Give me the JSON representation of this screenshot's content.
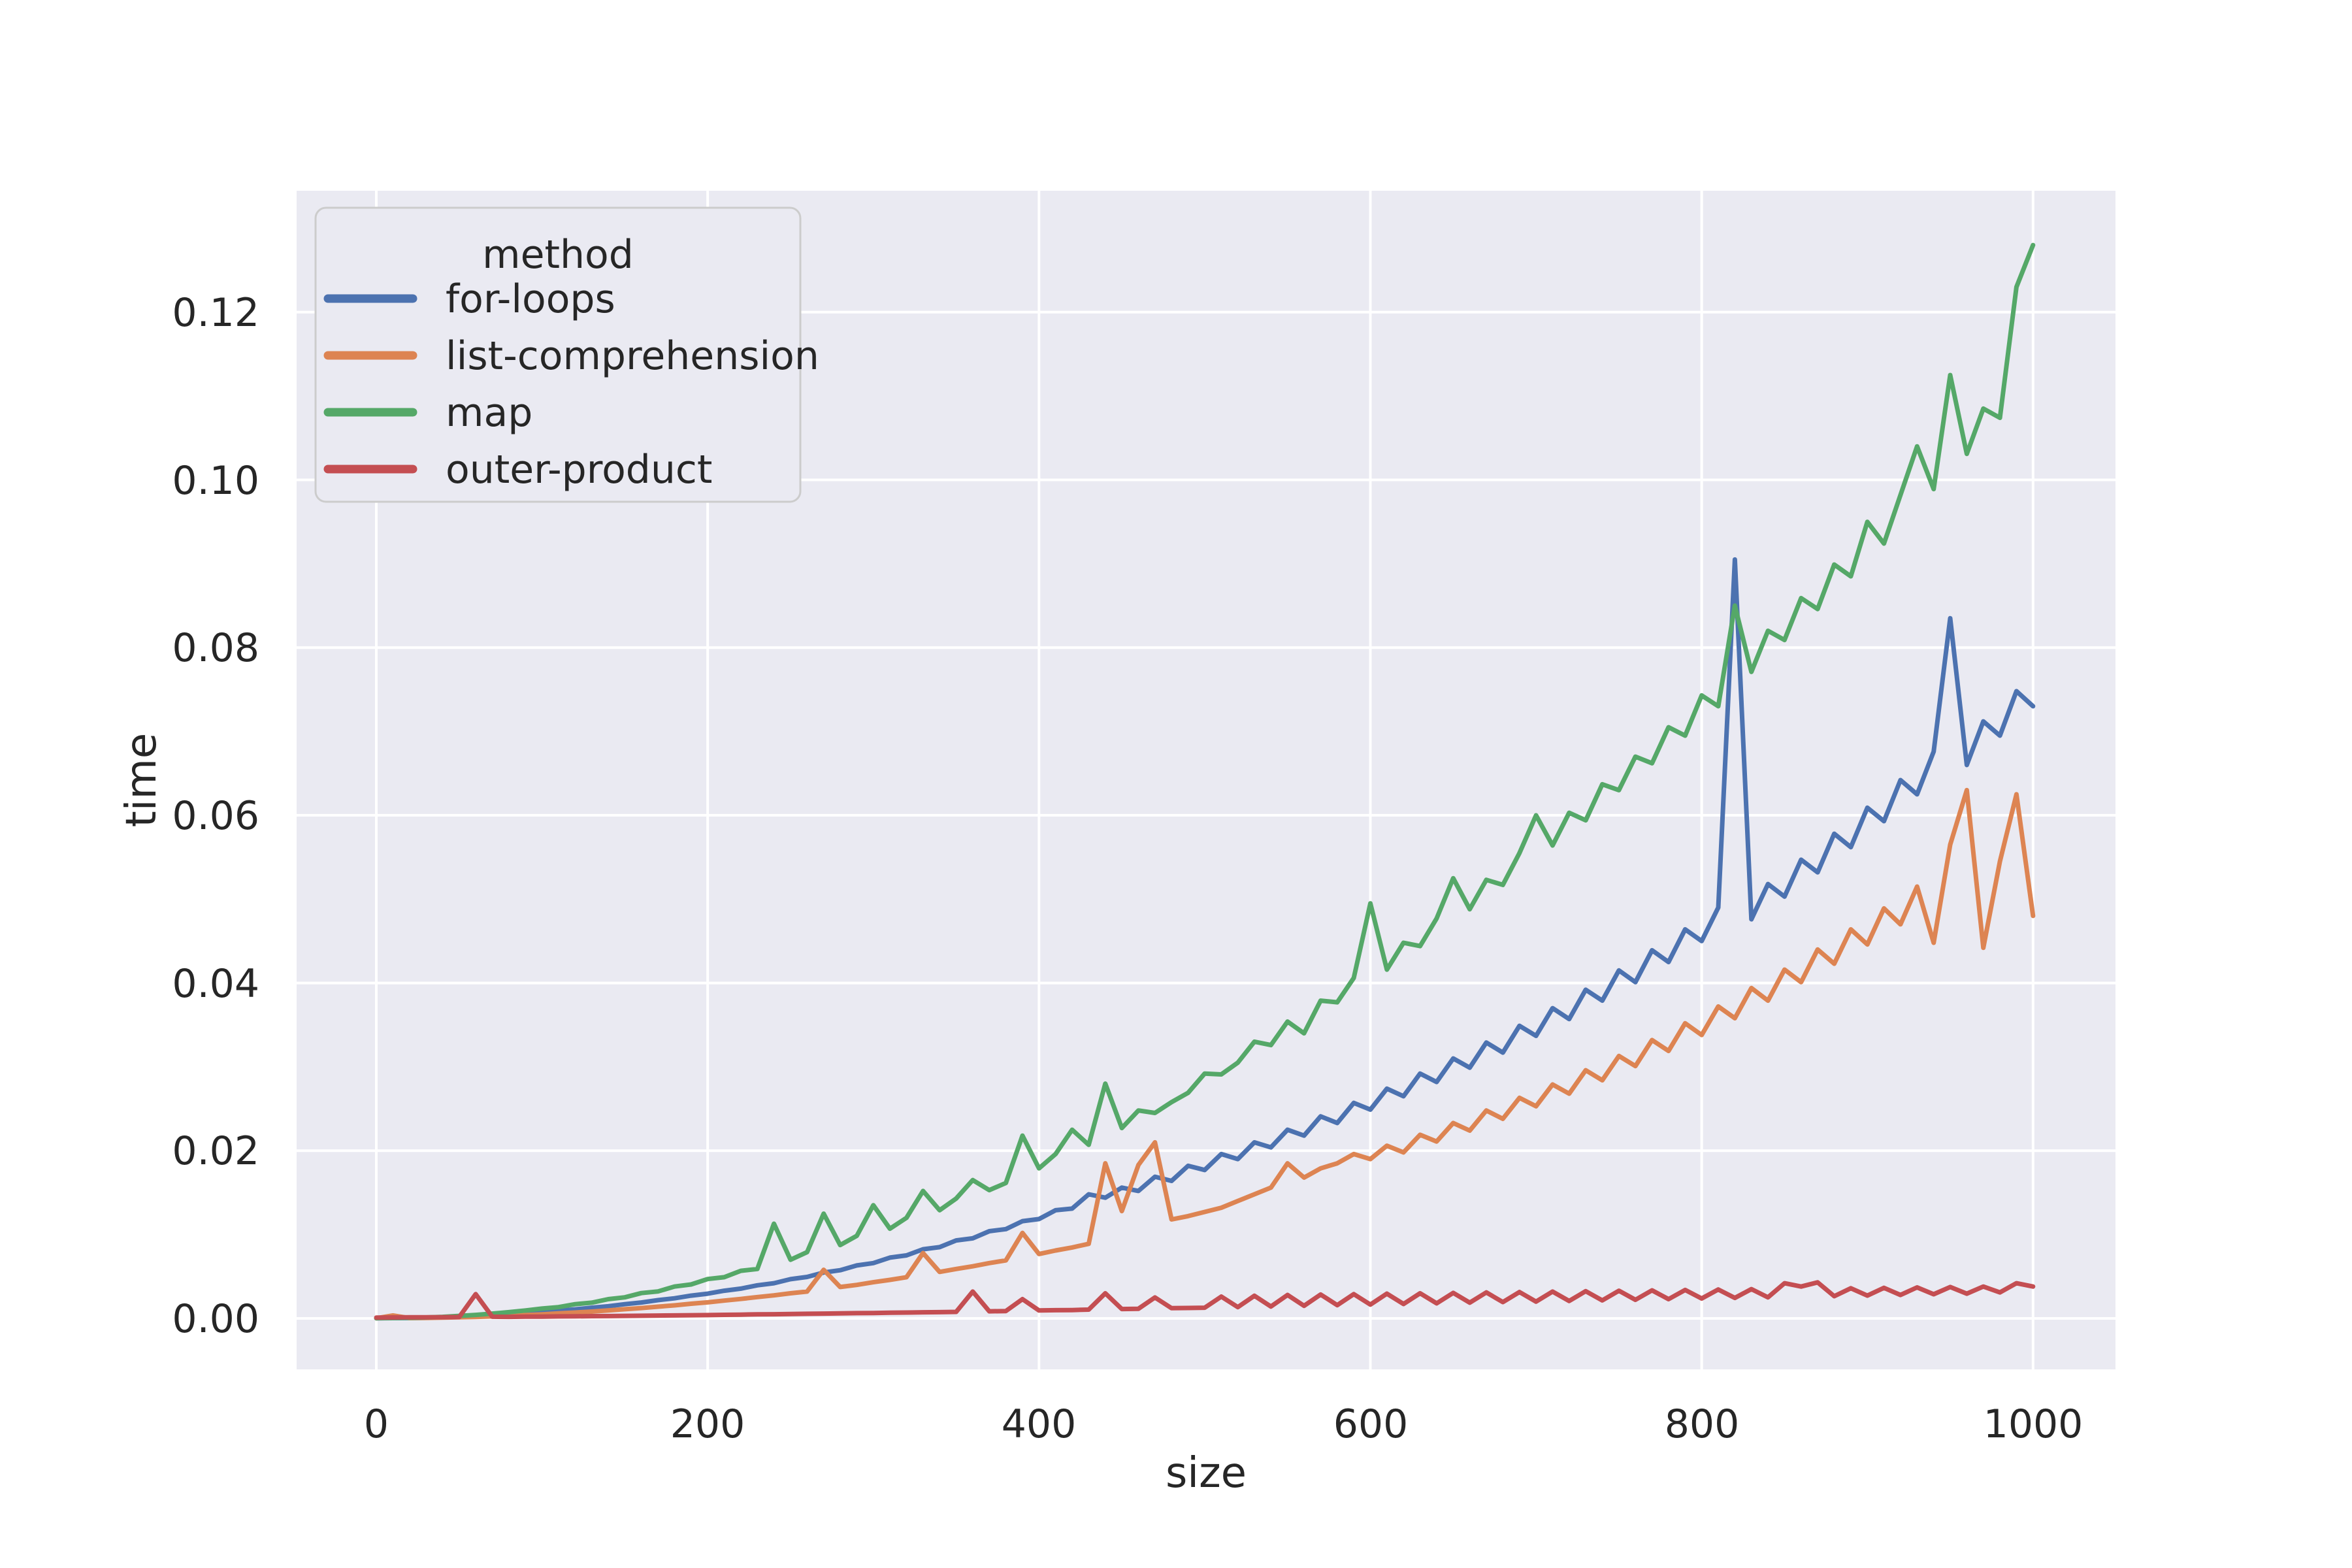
{
  "figure": {
    "background": "#ffffff",
    "axes_background": "#eaeaf2",
    "grid_color": "#ffffff",
    "text_color": "#262626",
    "legend_border_color": "#cccccc"
  },
  "chart_data": {
    "type": "line",
    "title": "",
    "xlabel": "size",
    "ylabel": "time",
    "grid": true,
    "xlim": [
      -50,
      1050
    ],
    "ylim": [
      -0.0065,
      0.1345
    ],
    "x_ticks": {
      "values": [
        0,
        200,
        400,
        600,
        800,
        1000
      ],
      "labels": [
        "0",
        "200",
        "400",
        "600",
        "800",
        "1000"
      ]
    },
    "y_ticks": {
      "values": [
        0.0,
        0.02,
        0.04,
        0.06,
        0.08,
        0.1,
        0.12
      ],
      "labels": [
        "0.00",
        "0.02",
        "0.04",
        "0.06",
        "0.08",
        "0.10",
        "0.12"
      ]
    },
    "legend": {
      "title": "method",
      "position": "upper-left"
    },
    "x": [
      0,
      10,
      20,
      30,
      40,
      50,
      60,
      70,
      80,
      90,
      100,
      110,
      120,
      130,
      140,
      150,
      160,
      170,
      180,
      190,
      200,
      210,
      220,
      230,
      240,
      250,
      260,
      270,
      280,
      290,
      300,
      310,
      320,
      330,
      340,
      350,
      360,
      370,
      380,
      390,
      400,
      410,
      420,
      430,
      440,
      450,
      460,
      470,
      480,
      490,
      500,
      510,
      520,
      530,
      540,
      550,
      560,
      570,
      580,
      590,
      600,
      610,
      620,
      630,
      640,
      650,
      660,
      670,
      680,
      690,
      700,
      710,
      720,
      730,
      740,
      750,
      760,
      770,
      780,
      790,
      800,
      810,
      820,
      830,
      840,
      850,
      860,
      870,
      880,
      890,
      900,
      910,
      920,
      930,
      940,
      950,
      960,
      970,
      980,
      990,
      1000
    ],
    "series": [
      {
        "name": "for-loops",
        "color": "#4c72b0",
        "values": [
          2e-05,
          4e-05,
          5e-05,
          8e-05,
          0.00013,
          0.0002,
          0.00028,
          0.00038,
          0.0005,
          0.00062,
          0.00077,
          0.00092,
          0.00108,
          0.00128,
          0.00146,
          0.0017,
          0.0019,
          0.00218,
          0.0024,
          0.00272,
          0.00295,
          0.0033,
          0.00355,
          0.00395,
          0.0042,
          0.00468,
          0.00495,
          0.00548,
          0.00575,
          0.00632,
          0.0066,
          0.00725,
          0.00752,
          0.00825,
          0.0085,
          0.0093,
          0.00955,
          0.0104,
          0.01065,
          0.0116,
          0.01185,
          0.0129,
          0.0131,
          0.0148,
          0.0144,
          0.0156,
          0.0152,
          0.0169,
          0.0164,
          0.0182,
          0.0177,
          0.0196,
          0.019,
          0.021,
          0.0204,
          0.0225,
          0.0218,
          0.0241,
          0.0233,
          0.0257,
          0.0249,
          0.0274,
          0.0265,
          0.0292,
          0.0282,
          0.031,
          0.0299,
          0.0329,
          0.0317,
          0.0349,
          0.0337,
          0.037,
          0.0357,
          0.0392,
          0.0379,
          0.0415,
          0.0401,
          0.0439,
          0.0425,
          0.0464,
          0.045,
          0.049,
          0.0905,
          0.0476,
          0.0518,
          0.0503,
          0.0547,
          0.0532,
          0.0578,
          0.0562,
          0.0609,
          0.0593,
          0.0642,
          0.0625,
          0.0676,
          0.0835,
          0.066,
          0.0712,
          0.0695,
          0.0748,
          0.073
        ]
      },
      {
        "name": "list-comprehension",
        "color": "#dd8452",
        "values": [
          2e-05,
          0.00035,
          4e-05,
          6e-05,
          9e-05,
          0.00013,
          0.00018,
          0.00024,
          0.00031,
          0.0004,
          0.00049,
          0.0006,
          0.0007,
          0.00082,
          0.00095,
          0.0011,
          0.00124,
          0.0014,
          0.00156,
          0.00175,
          0.00192,
          0.00213,
          0.00232,
          0.00255,
          0.00275,
          0.003,
          0.0032,
          0.0058,
          0.00375,
          0.004,
          0.00432,
          0.0046,
          0.00492,
          0.0078,
          0.00555,
          0.0059,
          0.00622,
          0.0066,
          0.00692,
          0.0102,
          0.00768,
          0.0081,
          0.00846,
          0.0089,
          0.0185,
          0.0128,
          0.0183,
          0.021,
          0.0118,
          0.0122,
          0.0127,
          0.0132,
          0.014,
          0.0148,
          0.0156,
          0.0185,
          0.0168,
          0.0179,
          0.0185,
          0.0196,
          0.019,
          0.0206,
          0.0198,
          0.0219,
          0.0211,
          0.0233,
          0.0224,
          0.0248,
          0.0238,
          0.0263,
          0.0253,
          0.0279,
          0.0268,
          0.0296,
          0.0284,
          0.0313,
          0.0301,
          0.0332,
          0.0319,
          0.0352,
          0.0338,
          0.0372,
          0.0358,
          0.0394,
          0.0379,
          0.0416,
          0.0401,
          0.044,
          0.0423,
          0.0464,
          0.0446,
          0.0489,
          0.047,
          0.0515,
          0.0448,
          0.0565,
          0.063,
          0.0442,
          0.0545,
          0.0625,
          0.048
        ]
      },
      {
        "name": "map",
        "color": "#55a868",
        "values": [
          3e-05,
          5e-05,
          8e-05,
          0.00012,
          0.00019,
          0.0003,
          0.00042,
          0.00058,
          0.00075,
          0.00095,
          0.00118,
          0.00135,
          0.0017,
          0.00188,
          0.0023,
          0.00252,
          0.00302,
          0.00322,
          0.0038,
          0.00405,
          0.0047,
          0.00492,
          0.00568,
          0.0059,
          0.0113,
          0.007,
          0.0079,
          0.0125,
          0.00875,
          0.00985,
          0.0135,
          0.0107,
          0.012,
          0.0152,
          0.0129,
          0.0143,
          0.0165,
          0.0153,
          0.01615,
          0.0218,
          0.0179,
          0.0196,
          0.0225,
          0.0207,
          0.028,
          0.0227,
          0.0248,
          0.0245,
          0.0258,
          0.0269,
          0.0292,
          0.0291,
          0.0305,
          0.033,
          0.0326,
          0.0354,
          0.034,
          0.0379,
          0.0377,
          0.0406,
          0.0495,
          0.0416,
          0.0448,
          0.0444,
          0.0477,
          0.0525,
          0.0488,
          0.0523,
          0.0517,
          0.0555,
          0.06,
          0.0564,
          0.0603,
          0.0594,
          0.0637,
          0.063,
          0.067,
          0.0662,
          0.0705,
          0.0695,
          0.0743,
          0.073,
          0.085,
          0.0771,
          0.082,
          0.0809,
          0.0859,
          0.0846,
          0.0899,
          0.0885,
          0.095,
          0.0924,
          0.0982,
          0.104,
          0.0989,
          0.1125,
          0.1031,
          0.1085,
          0.1074,
          0.123,
          0.128
        ]
      },
      {
        "name": "outer-product",
        "color": "#c44e52",
        "values": [
          0.0001,
          0.00012,
          0.00013,
          0.00014,
          0.00015,
          0.00016,
          0.0029,
          0.0002,
          0.00019,
          0.00021,
          0.00022,
          0.00024,
          0.00025,
          0.00027,
          0.00028,
          0.0003,
          0.00032,
          0.00034,
          0.00036,
          0.00038,
          0.0004,
          0.00043,
          0.00045,
          0.00048,
          0.0005,
          0.00053,
          0.00055,
          0.00058,
          0.0006,
          0.00063,
          0.00065,
          0.00068,
          0.0007,
          0.00073,
          0.00075,
          0.00078,
          0.0032,
          0.00085,
          0.00088,
          0.0023,
          0.00095,
          0.00098,
          0.001,
          0.00105,
          0.003,
          0.00112,
          0.00115,
          0.0025,
          0.00122,
          0.00125,
          0.00128,
          0.0026,
          0.00135,
          0.0027,
          0.00142,
          0.0028,
          0.0015,
          0.00285,
          0.00158,
          0.0029,
          0.00165,
          0.00295,
          0.00172,
          0.003,
          0.0018,
          0.00305,
          0.00188,
          0.0031,
          0.00195,
          0.00315,
          0.002,
          0.0032,
          0.00208,
          0.00325,
          0.00215,
          0.0033,
          0.00222,
          0.00335,
          0.0023,
          0.0034,
          0.00238,
          0.00345,
          0.00245,
          0.0035,
          0.00252,
          0.0042,
          0.0038,
          0.0043,
          0.00265,
          0.0036,
          0.00272,
          0.00365,
          0.0028,
          0.0037,
          0.00288,
          0.00375,
          0.00295,
          0.0038,
          0.0031,
          0.0042,
          0.0038
        ]
      }
    ]
  }
}
